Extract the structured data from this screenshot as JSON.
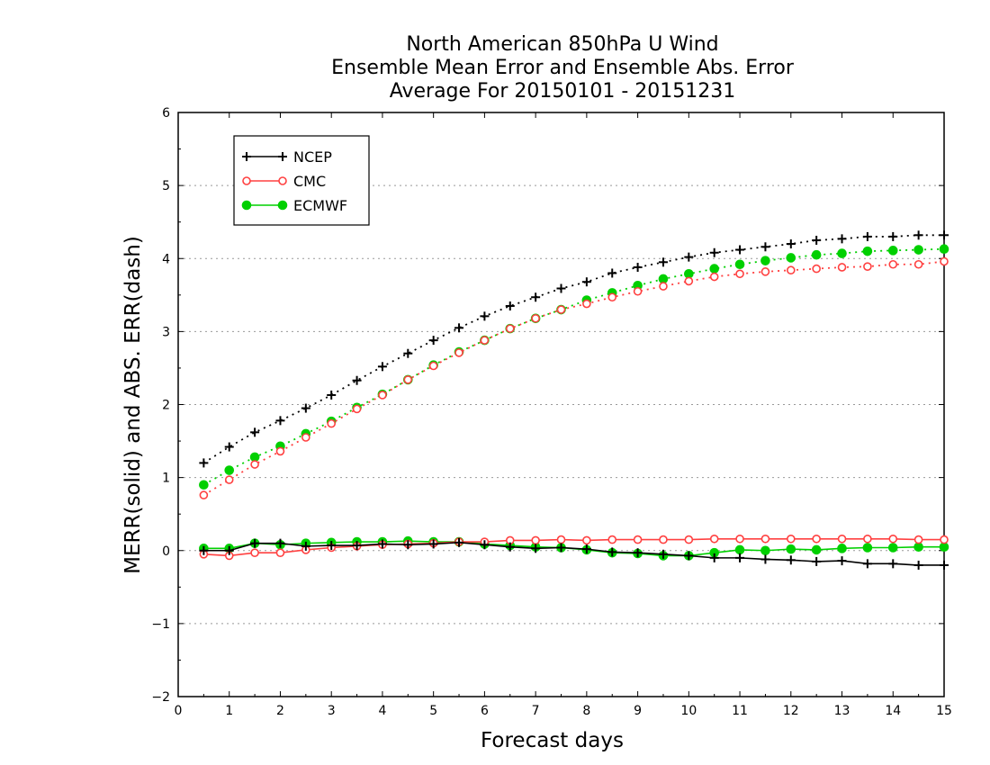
{
  "chart_data": {
    "type": "line",
    "title_lines": [
      "North American 850hPa U Wind",
      "Ensemble Mean Error and Ensemble Abs. Error",
      "Average For 20150101 - 20151231"
    ],
    "xlabel": "Forecast days",
    "ylabel": "MERR(solid) and ABS. ERR(dash)",
    "xlim": [
      0,
      15
    ],
    "ylim": [
      -2,
      6
    ],
    "xticks": [
      "0",
      "1",
      "2",
      "3",
      "4",
      "5",
      "6",
      "7",
      "8",
      "9",
      "10",
      "11",
      "12",
      "13",
      "14",
      "15"
    ],
    "yticks": [
      "−2",
      "−1",
      "0",
      "1",
      "2",
      "3",
      "4",
      "5",
      "6"
    ],
    "grid": "horizontal dotted",
    "legend_position": "top-left",
    "x": [
      0.5,
      1,
      1.5,
      2,
      2.5,
      3,
      3.5,
      4,
      4.5,
      5,
      5.5,
      6,
      6.5,
      7,
      7.5,
      8,
      8.5,
      9,
      9.5,
      10,
      10.5,
      11,
      11.5,
      12,
      12.5,
      13,
      13.5,
      14,
      14.5,
      15
    ],
    "series": [
      {
        "name": "NCEP",
        "color": "#000000",
        "marker": "plus",
        "abs_err": [
          1.2,
          1.42,
          1.62,
          1.78,
          1.95,
          2.13,
          2.33,
          2.52,
          2.7,
          2.88,
          3.05,
          3.21,
          3.35,
          3.47,
          3.59,
          3.68,
          3.8,
          3.88,
          3.95,
          4.02,
          4.08,
          4.12,
          4.16,
          4.2,
          4.25,
          4.27,
          4.3,
          4.3,
          4.32,
          4.32
        ],
        "mean_err": [
          0.0,
          0.0,
          0.1,
          0.1,
          0.06,
          0.07,
          0.07,
          0.09,
          0.08,
          0.09,
          0.11,
          0.08,
          0.05,
          0.03,
          0.04,
          0.02,
          -0.02,
          -0.03,
          -0.05,
          -0.07,
          -0.1,
          -0.1,
          -0.12,
          -0.13,
          -0.15,
          -0.14,
          -0.18,
          -0.18,
          -0.2,
          -0.2
        ]
      },
      {
        "name": "CMC",
        "color": "#ff4040",
        "marker": "open-circle",
        "abs_err": [
          0.76,
          0.97,
          1.18,
          1.36,
          1.55,
          1.74,
          1.94,
          2.13,
          2.34,
          2.53,
          2.71,
          2.88,
          3.04,
          3.18,
          3.3,
          3.38,
          3.47,
          3.55,
          3.62,
          3.69,
          3.75,
          3.79,
          3.82,
          3.84,
          3.86,
          3.88,
          3.89,
          3.92,
          3.92,
          3.96
        ],
        "mean_err": [
          -0.05,
          -0.07,
          -0.03,
          -0.03,
          0.01,
          0.04,
          0.06,
          0.08,
          0.09,
          0.1,
          0.12,
          0.12,
          0.14,
          0.14,
          0.15,
          0.14,
          0.15,
          0.15,
          0.15,
          0.15,
          0.16,
          0.16,
          0.16,
          0.16,
          0.16,
          0.16,
          0.16,
          0.16,
          0.15,
          0.15
        ]
      },
      {
        "name": "ECMWF",
        "color": "#00d000",
        "marker": "filled-circle",
        "abs_err": [
          0.9,
          1.1,
          1.28,
          1.43,
          1.6,
          1.77,
          1.96,
          2.14,
          2.34,
          2.54,
          2.72,
          2.88,
          3.04,
          3.18,
          3.3,
          3.43,
          3.53,
          3.63,
          3.72,
          3.79,
          3.86,
          3.92,
          3.97,
          4.01,
          4.05,
          4.07,
          4.1,
          4.11,
          4.12,
          4.13
        ],
        "mean_err": [
          0.03,
          0.03,
          0.1,
          0.08,
          0.1,
          0.11,
          0.12,
          0.12,
          0.13,
          0.12,
          0.12,
          0.09,
          0.07,
          0.05,
          0.04,
          0.01,
          -0.03,
          -0.04,
          -0.07,
          -0.07,
          -0.03,
          0.01,
          0.0,
          0.02,
          0.01,
          0.03,
          0.04,
          0.04,
          0.05,
          0.05
        ]
      }
    ]
  }
}
